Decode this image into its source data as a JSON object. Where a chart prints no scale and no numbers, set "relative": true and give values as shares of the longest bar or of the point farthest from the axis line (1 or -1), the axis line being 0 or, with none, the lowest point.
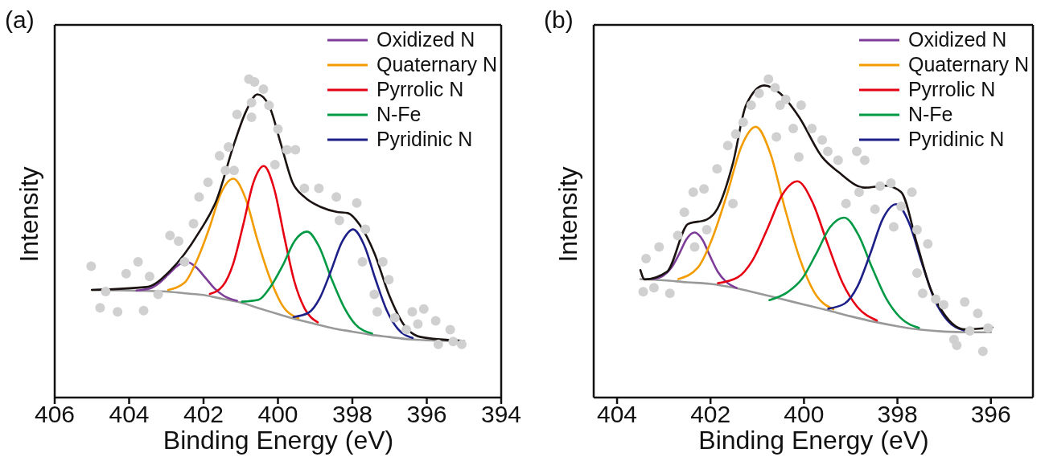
{
  "chart_data": [
    {
      "type": "line",
      "title": "(a)",
      "xlabel": "Binding Energy (eV)",
      "ylabel": "Intensity",
      "relative": true,
      "legend": "top right",
      "xlim": [
        406,
        394
      ],
      "xticks": [
        406,
        404,
        402,
        400,
        398,
        396,
        394
      ],
      "series": [
        {
          "type": "scatter",
          "color": "#d0d0d0",
          "x": [
            405.02,
            404.78,
            404.63,
            404.31,
            404.08,
            403.76,
            403.61,
            403.45,
            403.22,
            402.9,
            402.67,
            402.51,
            402.27,
            402.12,
            401.88,
            401.57,
            401.41,
            401.33,
            401.18,
            401.1,
            400.78,
            400.71,
            400.71,
            400.63,
            400.39,
            400.24,
            400.08,
            400.0,
            399.76,
            399.53,
            399.29,
            398.9,
            398.43,
            398.35,
            397.88,
            397.73,
            397.65,
            397.41,
            397.33,
            397.18,
            397.02,
            396.86,
            396.55,
            396.39,
            396.24,
            396.08,
            395.76,
            395.69,
            395.37,
            395.29,
            395.06
          ],
          "values": [
            0.412,
            0.282,
            0.333,
            0.269,
            0.389,
            0.426,
            0.273,
            0.38,
            0.324,
            0.509,
            0.491,
            0.426,
            0.546,
            0.63,
            0.676,
            0.759,
            0.713,
            0.787,
            0.713,
            0.889,
            1.0,
            0.88,
            0.926,
            0.991,
            0.968,
            0.917,
            0.731,
            0.843,
            0.778,
            0.778,
            0.657,
            0.657,
            0.63,
            0.556,
            0.611,
            0.426,
            0.528,
            0.324,
            0.269,
            0.426,
            0.37,
            0.25,
            0.213,
            0.269,
            0.231,
            0.278,
            0.241,
            0.167,
            0.213,
            0.176,
            0.167
          ]
        },
        {
          "color": "#999999",
          "x": [
            405,
            404,
            403,
            402.5,
            402,
            401.5,
            401,
            400.5,
            400,
            399.5,
            399,
            398.5,
            398,
            397.5,
            397,
            396.5,
            396,
            395
          ],
          "values": [
            0.338,
            0.336,
            0.333,
            0.327,
            0.322,
            0.31,
            0.298,
            0.28,
            0.262,
            0.245,
            0.231,
            0.217,
            0.207,
            0.197,
            0.19,
            0.183,
            0.18,
            0.178
          ]
        },
        {
          "name": "Oxidized N",
          "color": "#7d3c98",
          "x": [
            403.8,
            403.45,
            403.2,
            402.95,
            402.7,
            402.45,
            402.2,
            401.95,
            401.7,
            401.45,
            401.1
          ],
          "values": [
            0.336,
            0.342,
            0.359,
            0.386,
            0.414,
            0.426,
            0.409,
            0.376,
            0.342,
            0.319,
            0.304
          ]
        },
        {
          "name": "Quaternary N",
          "color": "#f29c00",
          "x": [
            402.95,
            402.5,
            402.2,
            401.85,
            401.53,
            401.2,
            400.87,
            400.55,
            400.2,
            399.9,
            399.45
          ],
          "values": [
            0.338,
            0.362,
            0.425,
            0.53,
            0.642,
            0.687,
            0.625,
            0.494,
            0.37,
            0.293,
            0.249
          ]
        },
        {
          "name": "Pyrrolic N",
          "color": "#e60012",
          "x": [
            401.83,
            401.48,
            401.2,
            400.93,
            400.66,
            400.38,
            400.1,
            399.83,
            399.56,
            399.28,
            398.93
          ],
          "values": [
            0.325,
            0.351,
            0.421,
            0.544,
            0.675,
            0.727,
            0.655,
            0.505,
            0.365,
            0.279,
            0.236
          ]
        },
        {
          "name": "N-Fe",
          "color": "#009944",
          "x": [
            400.97,
            400.52,
            400.22,
            399.87,
            399.55,
            399.22,
            398.89,
            398.57,
            398.22,
            397.92,
            397.47
          ],
          "values": [
            0.301,
            0.307,
            0.344,
            0.415,
            0.492,
            0.521,
            0.473,
            0.376,
            0.283,
            0.23,
            0.201
          ]
        },
        {
          "name": "Pyridinic N",
          "color": "#1d2088",
          "x": [
            399.58,
            399.18,
            398.88,
            398.58,
            398.28,
            397.98,
            397.68,
            397.38,
            397.08,
            396.78,
            396.38
          ],
          "values": [
            0.253,
            0.266,
            0.311,
            0.396,
            0.488,
            0.528,
            0.478,
            0.372,
            0.275,
            0.216,
            0.187
          ]
        },
        {
          "color": "#1a1311",
          "x": [
            405.0,
            403.53,
            402.9,
            402.12,
            401.65,
            401.18,
            400.86,
            400.55,
            400.24,
            399.92,
            399.61,
            399.29,
            398.82,
            398.43,
            398.12,
            397.8,
            397.41,
            397.02,
            396.63,
            396.16,
            395.06
          ],
          "values": [
            0.338,
            0.347,
            0.398,
            0.519,
            0.62,
            0.796,
            0.898,
            0.952,
            0.917,
            0.796,
            0.676,
            0.63,
            0.597,
            0.583,
            0.579,
            0.542,
            0.454,
            0.324,
            0.231,
            0.19,
            0.178
          ]
        }
      ]
    },
    {
      "type": "line",
      "title": "(b)",
      "xlabel": "Binding Energy (eV)",
      "ylabel": "Intensity",
      "relative": true,
      "legend": "top right",
      "xlim": [
        404.5,
        395.1
      ],
      "xticks": [
        404,
        402,
        400,
        398,
        396
      ],
      "series": [
        {
          "type": "scatter",
          "color": "#d0d0d0",
          "x": [
            403.44,
            403.38,
            403.21,
            403.1,
            402.87,
            402.7,
            402.56,
            402.37,
            402.34,
            402.14,
            402.08,
            401.86,
            401.63,
            401.52,
            401.46,
            401.3,
            401.13,
            400.96,
            400.76,
            400.62,
            400.59,
            400.51,
            400.39,
            400.23,
            400.11,
            400.06,
            399.83,
            399.61,
            399.49,
            399.27,
            399.1,
            398.87,
            398.82,
            398.7,
            398.48,
            398.37,
            398.14,
            398.08,
            397.92,
            397.69,
            397.58,
            397.58,
            397.46,
            397.35,
            397.18,
            397.01,
            396.79,
            396.73,
            396.56,
            396.45,
            396.28,
            396.17,
            396.06
          ],
          "values": [
            0.332,
            0.436,
            0.345,
            0.473,
            0.327,
            0.509,
            0.582,
            0.645,
            0.473,
            0.655,
            0.527,
            0.718,
            0.791,
            0.609,
            0.827,
            0.864,
            0.918,
            0.955,
            1.0,
            0.973,
            0.818,
            0.918,
            0.936,
            0.845,
            0.755,
            0.918,
            0.845,
            0.809,
            0.773,
            0.745,
            0.609,
            0.773,
            0.645,
            0.745,
            0.591,
            0.664,
            0.673,
            0.536,
            0.6,
            0.645,
            0.527,
            0.391,
            0.327,
            0.482,
            0.309,
            0.291,
            0.182,
            0.164,
            0.3,
            0.209,
            0.264,
            0.145,
            0.218
          ]
        },
        {
          "color": "#999999",
          "x": [
            403.5,
            403,
            402.5,
            402,
            401.5,
            401,
            400.5,
            400,
            399.5,
            399,
            398.5,
            398,
            397.5,
            397,
            396.5,
            396
          ],
          "values": [
            0.372,
            0.368,
            0.362,
            0.357,
            0.345,
            0.328,
            0.31,
            0.292,
            0.274,
            0.255,
            0.238,
            0.224,
            0.213,
            0.207,
            0.205,
            0.205
          ]
        },
        {
          "name": "Oxidized N",
          "color": "#7d3c98",
          "x": [
            403.24,
            403.01,
            402.84,
            402.67,
            402.51,
            402.34,
            402.17,
            402.01,
            401.84,
            401.67,
            401.44
          ],
          "values": [
            0.372,
            0.383,
            0.407,
            0.451,
            0.498,
            0.518,
            0.495,
            0.444,
            0.394,
            0.364,
            0.344
          ]
        },
        {
          "name": "Quaternary N",
          "color": "#f29c00",
          "x": [
            402.69,
            402.27,
            401.98,
            401.65,
            401.34,
            401.03,
            400.72,
            400.41,
            400.08,
            399.79,
            399.37
          ],
          "values": [
            0.372,
            0.408,
            0.493,
            0.637,
            0.788,
            0.85,
            0.767,
            0.595,
            0.432,
            0.333,
            0.277
          ]
        },
        {
          "name": "Pyrrolic N",
          "color": "#e60012",
          "x": [
            401.84,
            401.42,
            401.1,
            400.78,
            400.46,
            400.14,
            399.82,
            399.5,
            399.18,
            398.86,
            398.44
          ],
          "values": [
            0.359,
            0.377,
            0.431,
            0.531,
            0.638,
            0.679,
            0.614,
            0.485,
            0.362,
            0.285,
            0.242
          ]
        },
        {
          "name": "N-Fe",
          "color": "#009944",
          "x": [
            400.74,
            400.34,
            400.04,
            399.74,
            399.44,
            399.14,
            398.84,
            398.54,
            398.24,
            397.94,
            397.54
          ],
          "values": [
            0.306,
            0.332,
            0.373,
            0.451,
            0.535,
            0.565,
            0.512,
            0.407,
            0.311,
            0.251,
            0.219
          ]
        },
        {
          "name": "Pyridinic N",
          "color": "#1d2088",
          "x": [
            399.48,
            399.13,
            398.85,
            398.58,
            398.31,
            398.03,
            397.75,
            397.48,
            397.21,
            396.93,
            396.58
          ],
          "values": [
            0.279,
            0.295,
            0.35,
            0.452,
            0.562,
            0.607,
            0.548,
            0.424,
            0.309,
            0.242,
            0.211
          ]
        },
        {
          "color": "#1a1311",
          "x": [
            403.5,
            403.41,
            402.93,
            402.48,
            402.08,
            401.86,
            401.52,
            401.24,
            400.85,
            400.51,
            400.11,
            399.61,
            399.27,
            398.7,
            398.25,
            397.92,
            397.58,
            397.3,
            397.01,
            396.56,
            395.97
          ],
          "values": [
            0.4,
            0.371,
            0.395,
            0.545,
            0.559,
            0.591,
            0.736,
            0.918,
            0.98,
            0.955,
            0.882,
            0.755,
            0.709,
            0.659,
            0.665,
            0.645,
            0.482,
            0.345,
            0.264,
            0.214,
            0.22
          ]
        }
      ]
    }
  ]
}
